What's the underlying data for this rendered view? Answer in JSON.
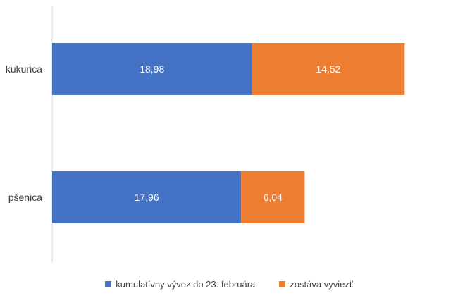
{
  "chart_data": {
    "type": "bar",
    "orientation": "horizontal",
    "stacked": true,
    "categories": [
      "kukurica",
      "pšenica"
    ],
    "series": [
      {
        "name": "kumulatívny vývoz do 23. februára",
        "values": [
          18.98,
          17.96
        ],
        "labels": [
          "18,98",
          "17,96"
        ],
        "color": "#4472C4"
      },
      {
        "name": "zostáva vyviezť",
        "values": [
          14.52,
          6.04
        ],
        "labels": [
          "14,52",
          "6,04"
        ],
        "color": "#ED7D31"
      }
    ],
    "title": "",
    "xlabel": "",
    "ylabel": "",
    "xlim": [
      0,
      38.5
    ],
    "grid": false,
    "legend_position": "bottom"
  }
}
